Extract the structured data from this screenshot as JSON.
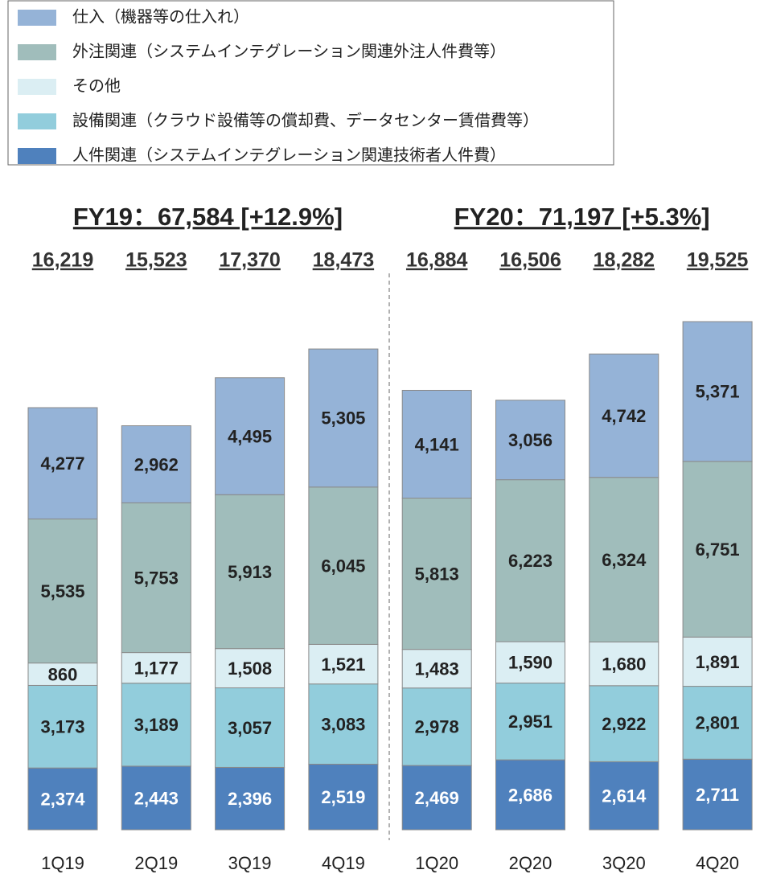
{
  "chart_data": {
    "type": "stacked_bar",
    "categories": [
      "1Q19",
      "2Q19",
      "3Q19",
      "4Q19",
      "1Q20",
      "2Q20",
      "3Q20",
      "4Q20"
    ],
    "series": [
      {
        "name": "人件関連（システムインテグレーション関連技術者人件費）",
        "color": "#4f81bd",
        "label_color": "#ffffff",
        "values": [
          2374,
          2443,
          2396,
          2519,
          2469,
          2686,
          2614,
          2711
        ],
        "value_labels": [
          "2,374",
          "2,443",
          "2,396",
          "2,519",
          "2,469",
          "2,686",
          "2,614",
          "2,711"
        ]
      },
      {
        "name": "設備関連（クラウド設備等の償却費、データセンター賃借費等）",
        "color": "#92cddc",
        "label_color": "#222222",
        "values": [
          3173,
          3189,
          3057,
          3083,
          2978,
          2951,
          2922,
          2801
        ],
        "value_labels": [
          "3,173",
          "3,189",
          "3,057",
          "3,083",
          "2,978",
          "2,951",
          "2,922",
          "2,801"
        ]
      },
      {
        "name": "その他",
        "color": "#dbeef3",
        "label_color": "#222222",
        "values": [
          860,
          1177,
          1508,
          1521,
          1483,
          1590,
          1680,
          1891
        ],
        "value_labels": [
          "860",
          "1,177",
          "1,508",
          "1,521",
          "1,483",
          "1,590",
          "1,680",
          "1,891"
        ]
      },
      {
        "name": "外注関連（システムインテグレーション関連外注人件費等）",
        "color": "#a0bdbb",
        "label_color": "#222222",
        "values": [
          5535,
          5753,
          5913,
          6045,
          5813,
          6223,
          6324,
          6751
        ],
        "value_labels": [
          "5,535",
          "5,753",
          "5,913",
          "6,045",
          "5,813",
          "6,223",
          "6,324",
          "6,751"
        ]
      },
      {
        "name": "仕入（機器等の仕入れ）",
        "color": "#95b3d7",
        "label_color": "#222222",
        "values": [
          4277,
          2962,
          4495,
          5305,
          4141,
          3056,
          4742,
          5371
        ],
        "value_labels": [
          "4,277",
          "2,962",
          "4,495",
          "5,305",
          "4,141",
          "3,056",
          "4,742",
          "5,371"
        ]
      }
    ],
    "totals": [
      16219,
      15523,
      17370,
      18473,
      16884,
      16506,
      18282,
      19525
    ],
    "totals_labels": [
      "16,219",
      "15,523",
      "17,370",
      "18,473",
      "16,884",
      "16,506",
      "18,282",
      "19,525"
    ],
    "group_titles": [
      "FY19：67,584 [+12.9%]",
      "FY20：71,197 [+5.3%]"
    ]
  }
}
